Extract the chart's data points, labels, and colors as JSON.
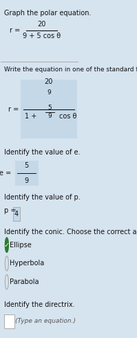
{
  "bg_color": "#d6e4f0",
  "title_text": "Graph the polar equation.",
  "equation_numerator": "20",
  "equation_denominator": "9 + 5 cos θ",
  "section2_label": "Write the equation in one of the standard forms",
  "standard_num": "20",
  "standard_num2": "9",
  "standard_eq_prefix": "r =",
  "standard_denom1": "1 + ",
  "standard_denom2": "5",
  "standard_denom3": "9",
  "standard_denom4": "cos θ",
  "section3_label": "Identify the value of e.",
  "e_label": "e = ",
  "e_num": "5",
  "e_den": "9",
  "section4_label": "Identify the value of p.",
  "p_label": "p = ",
  "p_value": "4",
  "section5_label": "Identify the conic. Choose the correct answer b",
  "choice1": "Ellipse",
  "choice2": "Hyperbola",
  "choice3": "Parabola",
  "choice1_selected": true,
  "choice2_selected": false,
  "choice3_selected": false,
  "section6_label": "Identify the directrix.",
  "directrix_hint": "(Type an equation.)",
  "divider_color": "#aaaaaa",
  "box_color": "#c5d8e8",
  "text_color": "#111111",
  "check_color": "#2d7a2d"
}
